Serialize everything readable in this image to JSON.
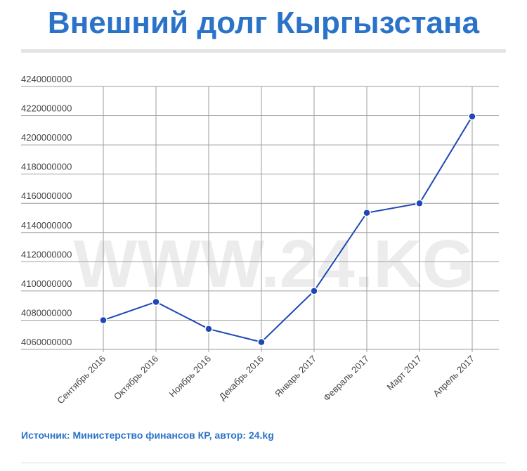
{
  "title": "Внешний долг Кыргызстана",
  "watermark": "WWW.24.KG",
  "source": "Источник: Министерство финансов КР, автор: 24.kg",
  "colors": {
    "title": "#2a73c9",
    "line": "#1f47b5",
    "grid": "#9e9e9e",
    "watermark": "#ececec"
  },
  "chart_data": {
    "type": "line",
    "categories": [
      "Сентябрь 2016",
      "Октябрь 2016",
      "Ноябрь 2016",
      "Декабрь 2016",
      "Январь 2017",
      "Февраль 2017",
      "Март 2017",
      "Апрель 2017"
    ],
    "values": [
      4080000000,
      4092500000,
      4074000000,
      4065000000,
      4100000000,
      4153500000,
      4160000000,
      4219500000
    ],
    "ylim": [
      4060000000,
      4240000000
    ],
    "yticks": [
      "4060000000",
      "4080000000",
      "4100000000",
      "4120000000",
      "4140000000",
      "4160000000",
      "4180000000",
      "4200000000",
      "4220000000",
      "4240000000"
    ],
    "grid": true,
    "legend": "none"
  }
}
